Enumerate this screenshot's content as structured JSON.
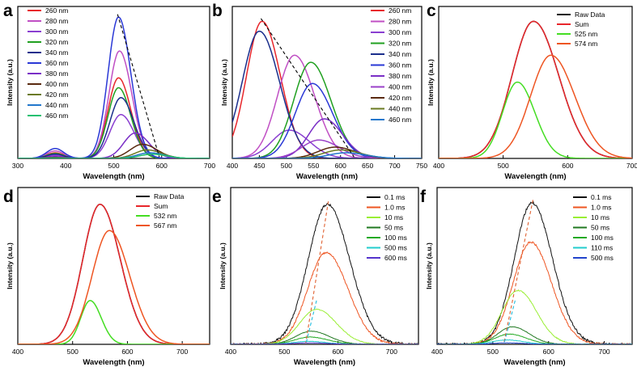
{
  "figure": {
    "description_labels": [
      "a",
      "b",
      "c",
      "d",
      "e",
      "f"
    ]
  },
  "chart_data": [
    {
      "panel": "a",
      "type": "line",
      "xlabel": "Wavelength (nm)",
      "ylabel": "Intensity (a.u.)",
      "xlim": [
        300,
        700
      ],
      "ylim": [
        0,
        1.0
      ],
      "xticks": [
        300,
        400,
        500,
        600,
        700
      ],
      "legend_position": "top-left",
      "annotation": "dashed arrow tracing peak maxima",
      "series": [
        {
          "name": "260 nm",
          "color": "#e8262b",
          "peak": 510,
          "width": 38,
          "amp": 0.57
        },
        {
          "name": "280 nm",
          "color": "#c04fc4",
          "peak": 512,
          "width": 38,
          "amp": 0.76
        },
        {
          "name": "300 nm",
          "color": "#8a3fd1",
          "peak": 515,
          "width": 40,
          "amp": 0.31
        },
        {
          "name": "320 nm",
          "color": "#20a020",
          "peak": 510,
          "width": 38,
          "amp": 0.5
        },
        {
          "name": "340 nm",
          "color": "#1a2e8c",
          "peak": 515,
          "width": 40,
          "amp": 0.43
        },
        {
          "name": "360 nm",
          "color": "#2a38d6",
          "peak": 510,
          "width": 38,
          "amp": 1.0
        },
        {
          "name": "380 nm",
          "color": "#7a2ec6",
          "peak": 545,
          "width": 42,
          "amp": 0.18
        },
        {
          "name": "400 nm",
          "color": "#5a2a10",
          "peak": 560,
          "width": 45,
          "amp": 0.1
        },
        {
          "name": "420 nm",
          "color": "#6a7a20",
          "peak": 570,
          "width": 45,
          "amp": 0.06
        },
        {
          "name": "440 nm",
          "color": "#2277cc",
          "peak": 575,
          "width": 45,
          "amp": 0.04
        },
        {
          "name": "460 nm",
          "color": "#20c070",
          "peak": 580,
          "width": 45,
          "amp": 0.03
        }
      ]
    },
    {
      "panel": "b",
      "type": "line",
      "xlabel": "Wavelength (nm)",
      "ylabel": "Intensity (a.u.)",
      "xlim": [
        400,
        750
      ],
      "ylim": [
        0,
        1.0
      ],
      "xticks": [
        400,
        450,
        500,
        550,
        600,
        650,
        700,
        750
      ],
      "legend_position": "top-right",
      "annotation": "dashed arrow tracing peak maxima",
      "series": [
        {
          "name": "260 nm",
          "color": "#e8262b",
          "peak": 455,
          "width": 50,
          "amp": 0.97
        },
        {
          "name": "280 nm",
          "color": "#c04fc4",
          "peak": 515,
          "width": 55,
          "amp": 0.73
        },
        {
          "name": "300 nm",
          "color": "#8a3fd1",
          "peak": 505,
          "width": 55,
          "amp": 0.2
        },
        {
          "name": "320 nm",
          "color": "#20a020",
          "peak": 545,
          "width": 55,
          "amp": 0.68
        },
        {
          "name": "340 nm",
          "color": "#1a2e8c",
          "peak": 450,
          "width": 55,
          "amp": 0.9
        },
        {
          "name": "360 nm",
          "color": "#2a38d6",
          "peak": 548,
          "width": 55,
          "amp": 0.53
        },
        {
          "name": "380 nm",
          "color": "#7a2ec6",
          "peak": 570,
          "width": 50,
          "amp": 0.28
        },
        {
          "name": "400 nm",
          "color": "#9a40c8",
          "peak": 560,
          "width": 55,
          "amp": 0.13
        },
        {
          "name": "420 nm",
          "color": "#5a2a10",
          "peak": 590,
          "width": 55,
          "amp": 0.08
        },
        {
          "name": "440 nm",
          "color": "#6a7a20",
          "peak": 600,
          "width": 55,
          "amp": 0.06
        },
        {
          "name": "460 nm",
          "color": "#2277cc",
          "peak": 610,
          "width": 55,
          "amp": 0.04
        }
      ]
    },
    {
      "panel": "c",
      "type": "line",
      "xlabel": "Wavelength (nm)",
      "ylabel": "Intensity (a.u.)",
      "xlim": [
        400,
        700
      ],
      "ylim": [
        0,
        1.0
      ],
      "xticks": [
        400,
        500,
        600,
        700
      ],
      "legend_position": "top-right",
      "series": [
        {
          "name": "Raw Data",
          "color": "#111111",
          "peak": 547,
          "width": 58,
          "amp": 0.97
        },
        {
          "name": "Sum",
          "color": "#e8262b",
          "peak": 547,
          "width": 58,
          "amp": 0.97
        },
        {
          "name": "525 nm",
          "color": "#44dd22",
          "peak": 522,
          "width": 40,
          "amp": 0.54
        },
        {
          "name": "574 nm",
          "color": "#ee5522",
          "peak": 574,
          "width": 55,
          "amp": 0.73
        }
      ]
    },
    {
      "panel": "d",
      "type": "line",
      "xlabel": "Wavelength (nm)",
      "ylabel": "Intensity (a.u.)",
      "xlim": [
        400,
        750
      ],
      "ylim": [
        0,
        1.0
      ],
      "xticks": [
        400,
        500,
        600,
        700
      ],
      "legend_position": "top-right",
      "series": [
        {
          "name": "Raw Data",
          "color": "#111111",
          "peak": 550,
          "width": 55,
          "amp": 0.96
        },
        {
          "name": "Sum",
          "color": "#e8262b",
          "peak": 550,
          "width": 55,
          "amp": 0.96
        },
        {
          "name": "532 nm",
          "color": "#44dd22",
          "peak": 532,
          "width": 30,
          "amp": 0.3
        },
        {
          "name": "567 nm",
          "color": "#ee5522",
          "peak": 567,
          "width": 55,
          "amp": 0.78
        }
      ]
    },
    {
      "panel": "e",
      "type": "line",
      "xlabel": "Wavelength (nm)",
      "ylabel": "Intensity (a.u.)",
      "xlim": [
        400,
        750
      ],
      "ylim": [
        0,
        1.0
      ],
      "xticks": [
        400,
        500,
        600,
        700
      ],
      "legend_position": "top-right",
      "annotation": "dashed line tracing peak shift",
      "series": [
        {
          "name": "0.1 ms",
          "color": "#111111",
          "peak": 580,
          "width": 62,
          "amp": 0.96,
          "noisy": true
        },
        {
          "name": "1.0 ms",
          "color": "#ee5522",
          "peak": 578,
          "width": 60,
          "amp": 0.63,
          "noisy": true
        },
        {
          "name": "10 ms",
          "color": "#99ee33",
          "peak": 560,
          "width": 55,
          "amp": 0.24,
          "noisy": true
        },
        {
          "name": "50 ms",
          "color": "#207820",
          "peak": 550,
          "width": 50,
          "amp": 0.09,
          "noisy": true
        },
        {
          "name": "100 ms",
          "color": "#22aa22",
          "peak": 548,
          "width": 50,
          "amp": 0.05,
          "noisy": true
        },
        {
          "name": "500 ms",
          "color": "#22cccc",
          "peak": 545,
          "width": 50,
          "amp": 0.02,
          "noisy": true
        },
        {
          "name": "600 ms",
          "color": "#5533cc",
          "peak": 545,
          "width": 50,
          "amp": 0.01,
          "noisy": true
        }
      ]
    },
    {
      "panel": "f",
      "type": "line",
      "xlabel": "Wavelength (nm)",
      "ylabel": "Intensity (a.u.)",
      "xlim": [
        400,
        750
      ],
      "ylim": [
        0,
        1.0
      ],
      "xticks": [
        400,
        500,
        600,
        700
      ],
      "legend_position": "top-right",
      "annotation": "dashed line tracing peak shift",
      "series": [
        {
          "name": "0.1 ms",
          "color": "#111111",
          "peak": 570,
          "width": 55,
          "amp": 0.97,
          "noisy": true
        },
        {
          "name": "1.0 ms",
          "color": "#ee5522",
          "peak": 568,
          "width": 55,
          "amp": 0.7,
          "noisy": true
        },
        {
          "name": "10 ms",
          "color": "#99ee33",
          "peak": 545,
          "width": 50,
          "amp": 0.37,
          "noisy": true
        },
        {
          "name": "50 ms",
          "color": "#207820",
          "peak": 535,
          "width": 45,
          "amp": 0.12,
          "noisy": true
        },
        {
          "name": "100 ms",
          "color": "#22aa22",
          "peak": 530,
          "width": 45,
          "amp": 0.07,
          "noisy": true
        },
        {
          "name": "110 ms",
          "color": "#22cccc",
          "peak": 525,
          "width": 45,
          "amp": 0.03,
          "noisy": true
        },
        {
          "name": "500 ms",
          "color": "#2244cc",
          "peak": 525,
          "width": 45,
          "amp": 0.01,
          "noisy": true
        }
      ]
    }
  ]
}
